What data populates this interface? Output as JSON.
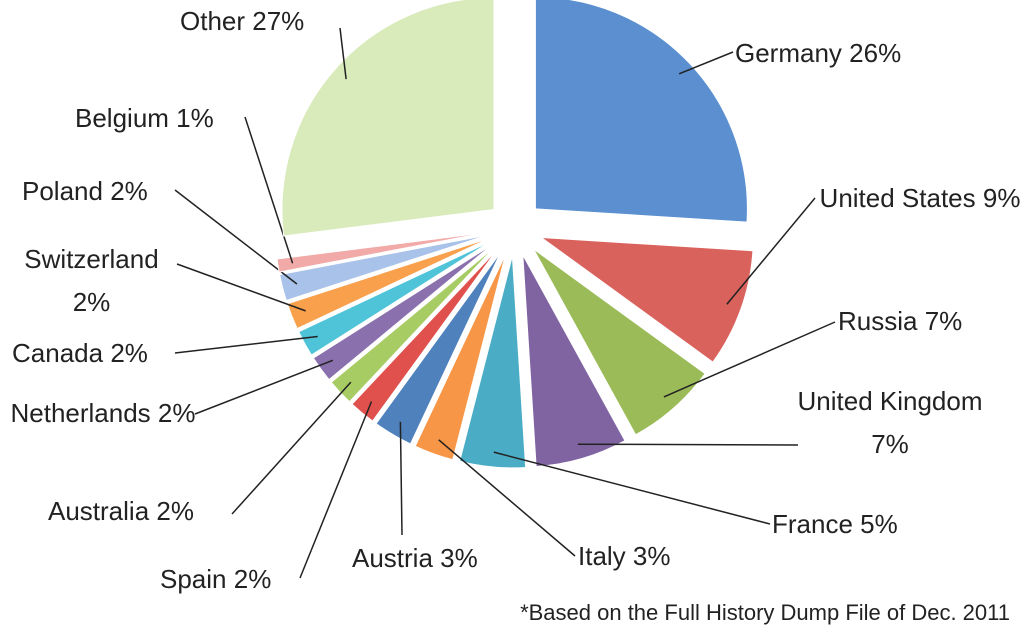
{
  "chart_data": {
    "type": "pie",
    "categories": [
      "Germany",
      "United States",
      "Russia",
      "United Kingdom",
      "France",
      "Italy",
      "Austria",
      "Spain",
      "Australia",
      "Netherlands",
      "Canada",
      "Switzerland",
      "Poland",
      "Belgium",
      "Other"
    ],
    "values": [
      26,
      9,
      7,
      7,
      5,
      3,
      3,
      2,
      2,
      2,
      2,
      2,
      2,
      1,
      27
    ],
    "value_labels": [
      "26%",
      "9%",
      "7%",
      "7%",
      "5%",
      "3%",
      "3%",
      "2%",
      "2%",
      "2%",
      "2%",
      "2%",
      "2%",
      "1%",
      "27%"
    ],
    "colors": [
      "#5b8fcf",
      "#d9625d",
      "#9bbb59",
      "#8064a2",
      "#4bacc6",
      "#f79646",
      "#4f81bd",
      "#e0504d",
      "#a8cc64",
      "#8a70ad",
      "#4fc3d8",
      "#f9a04c",
      "#a8c2ea",
      "#f2aaa8",
      "#d9eabb"
    ],
    "note": "*Based on the Full History Dump File of Dec. 2011"
  }
}
